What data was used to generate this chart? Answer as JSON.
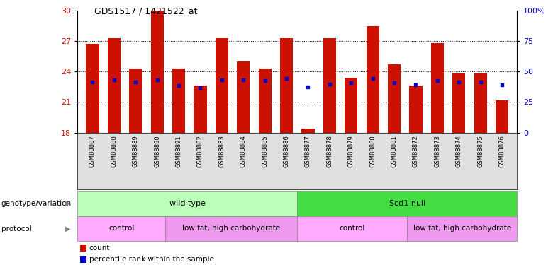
{
  "title": "GDS1517 / 1421522_at",
  "samples": [
    "GSM88887",
    "GSM88888",
    "GSM88889",
    "GSM88890",
    "GSM88891",
    "GSM88882",
    "GSM88883",
    "GSM88884",
    "GSM88885",
    "GSM88886",
    "GSM88877",
    "GSM88878",
    "GSM88879",
    "GSM88880",
    "GSM88881",
    "GSM88872",
    "GSM88873",
    "GSM88874",
    "GSM88875",
    "GSM88876"
  ],
  "bar_heights": [
    26.7,
    27.3,
    24.3,
    30.0,
    24.3,
    22.6,
    27.3,
    25.0,
    24.3,
    27.3,
    18.4,
    27.3,
    23.4,
    28.5,
    24.7,
    22.6,
    26.8,
    23.8,
    23.8,
    21.2
  ],
  "blue_y": [
    23.0,
    23.2,
    23.0,
    23.2,
    22.6,
    22.4,
    23.2,
    23.2,
    23.1,
    23.3,
    22.5,
    22.8,
    22.9,
    23.3,
    22.9,
    22.7,
    23.1,
    23.0,
    23.0,
    22.7
  ],
  "ylim_left": [
    18,
    30
  ],
  "ylim_right": [
    0,
    100
  ],
  "yticks_left": [
    18,
    21,
    24,
    27,
    30
  ],
  "yticks_right": [
    0,
    25,
    50,
    75,
    100
  ],
  "bar_color": "#cc1100",
  "blue_color": "#0000cc",
  "bar_bottom": 18,
  "groups": [
    {
      "label": "wild type",
      "start": 0,
      "end": 10,
      "color": "#bbffbb"
    },
    {
      "label": "Scd1 null",
      "start": 10,
      "end": 20,
      "color": "#44dd44"
    }
  ],
  "protocols": [
    {
      "label": "control",
      "start": 0,
      "end": 4,
      "color": "#ffaaff"
    },
    {
      "label": "low fat, high carbohydrate",
      "start": 4,
      "end": 10,
      "color": "#ee99ee"
    },
    {
      "label": "control",
      "start": 10,
      "end": 15,
      "color": "#ffaaff"
    },
    {
      "label": "low fat, high carbohydrate",
      "start": 15,
      "end": 20,
      "color": "#ee99ee"
    }
  ],
  "legend_items": [
    {
      "label": "count",
      "color": "#cc1100"
    },
    {
      "label": "percentile rank within the sample",
      "color": "#0000cc"
    }
  ],
  "left_labels": [
    "genotype/variation",
    "protocol"
  ],
  "xtick_bg": "#e0e0e0",
  "background_color": "#ffffff",
  "grid_yticks": [
    21,
    24,
    27
  ]
}
